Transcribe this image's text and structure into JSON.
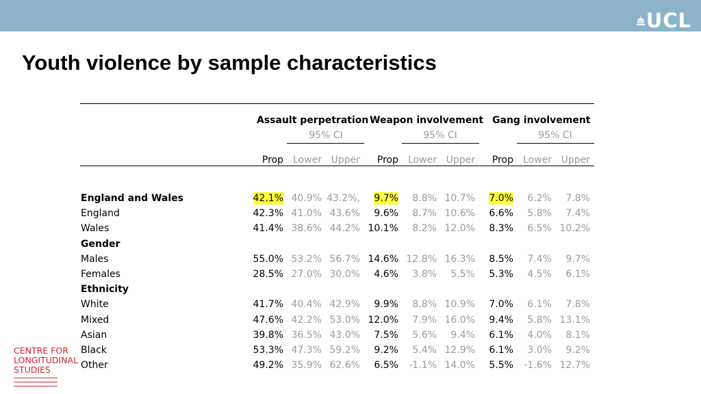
{
  "header": {
    "logo_text": "UCL",
    "logo_icon": "ucl-portico-icon"
  },
  "title": "Youth violence by sample characteristics",
  "table": {
    "groups": [
      {
        "label": "Assault perpetration",
        "ci_label": "95% CI"
      },
      {
        "label": "Weapon involvement",
        "ci_label": "95% CI"
      },
      {
        "label": "Gang involvement",
        "ci_label": "95% CI"
      }
    ],
    "subheaders": [
      "Prop",
      "Lower",
      "Upper"
    ],
    "rows": [
      {
        "label": "England and Wales",
        "bold": true,
        "highlight": true,
        "values": [
          "42.1%",
          "40.9%",
          "43.2%,",
          "9.7%",
          "8.8%",
          "10.7%",
          "7.0%",
          "6.2%",
          "7.8%"
        ]
      },
      {
        "label": "England",
        "values": [
          "42.3%",
          "41.0%",
          "43.6%",
          "9.6%",
          "8.7%",
          "10.6%",
          "6.6%",
          "5.8%",
          "7.4%"
        ]
      },
      {
        "label": "Wales",
        "values": [
          "41.4%",
          "38.6%",
          "44.2%",
          "10.1%",
          "8.2%",
          "12.0%",
          "8.3%",
          "6.5%",
          "10.2%"
        ]
      },
      {
        "label": "Gender",
        "bold": true,
        "values": []
      },
      {
        "label": "Males",
        "values": [
          "55.0%",
          "53.2%",
          "56.7%",
          "14.6%",
          "12.8%",
          "16.3%",
          "8.5%",
          "7.4%",
          "9.7%"
        ]
      },
      {
        "label": "Females",
        "values": [
          "28.5%",
          "27.0%",
          "30.0%",
          "4.6%",
          "3.8%",
          "5.5%",
          "5.3%",
          "4.5%",
          "6.1%"
        ]
      },
      {
        "label": "Ethnicity",
        "bold": true,
        "values": []
      },
      {
        "label": "White",
        "values": [
          "41.7%",
          "40.4%",
          "42.9%",
          "9.9%",
          "8.8%",
          "10.9%",
          "7.0%",
          "6.1%",
          "7.8%"
        ]
      },
      {
        "label": "Mixed",
        "values": [
          "47.6%",
          "42.2%",
          "53.0%",
          "12.0%",
          "7.9%",
          "16.0%",
          "9.4%",
          "5.8%",
          "13.1%"
        ]
      },
      {
        "label": "Asian",
        "values": [
          "39.8%",
          "36.5%",
          "43.0%",
          "7.5%",
          "5.6%",
          "9.4%",
          "6.1%",
          "4.0%",
          "8.1%"
        ]
      },
      {
        "label": "Black",
        "values": [
          "53.3%",
          "47.3%",
          "59.2%",
          "9.2%",
          "5.4%",
          "12.9%",
          "6.1%",
          "3.0%",
          "9.2%"
        ]
      },
      {
        "label": "Other",
        "values": [
          "49.2%",
          "35.9%",
          "62.6%",
          "6.5%",
          "-1.1%",
          "14.0%",
          "5.5%",
          "-1.6%",
          "12.7%"
        ]
      }
    ]
  },
  "footer_logo": {
    "lines": [
      "CENTRE FOR",
      "LONGITUDINAL",
      "STUDIES"
    ]
  },
  "colors": {
    "topbar": "#8cb4c9",
    "highlight": "#ffff33",
    "brand_red": "#d2232a",
    "ci_grey": "#9a9a9a"
  }
}
